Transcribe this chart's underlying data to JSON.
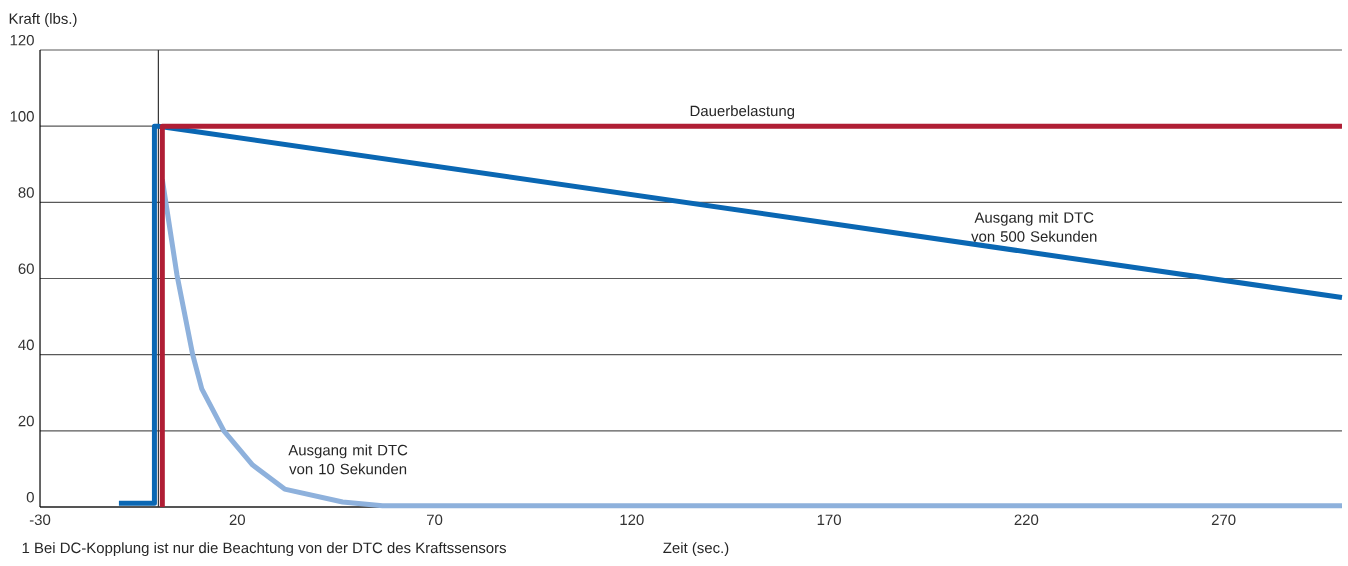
{
  "chart_data": {
    "type": "line",
    "xlabel": "Zeit (sec.)",
    "ylabel": "Kraft (lbs.)",
    "annotations": [
      "1 Bei DC-Kopplung ist nur die Beachtung von der DTC des Kraftssensors"
    ],
    "xlim": [
      -30,
      300
    ],
    "ylim": [
      0,
      120
    ],
    "xticks": [
      -30,
      20,
      70,
      120,
      170,
      220,
      270
    ],
    "yticks": [
      0,
      20,
      40,
      60,
      80,
      100,
      120
    ],
    "grid": "y",
    "ref_lines": [
      {
        "axis": "x",
        "value": 0,
        "color": "#333333"
      }
    ],
    "series": [
      {
        "name": "Ausgang mit DTC von 10 Sekunden",
        "color": "#8eb1dc",
        "x": [
          1,
          4.7,
          8.7,
          11,
          16.6,
          23.9,
          32,
          46.7,
          56.8,
          300
        ],
        "values": [
          86,
          61,
          40,
          31,
          20,
          11,
          4.7,
          1.3,
          0.3,
          0.3
        ]
      },
      {
        "name": "Ausgang mit DTC von 500 Sekunden",
        "color": "#0a67b3",
        "x": [
          -10,
          -1,
          -1,
          0,
          300
        ],
        "values": [
          1,
          1,
          100,
          100,
          55
        ]
      },
      {
        "name": "Dauerbelastung",
        "color": "#b01e35",
        "x": [
          1,
          1,
          300
        ],
        "values": [
          0,
          100,
          100
        ]
      }
    ]
  }
}
